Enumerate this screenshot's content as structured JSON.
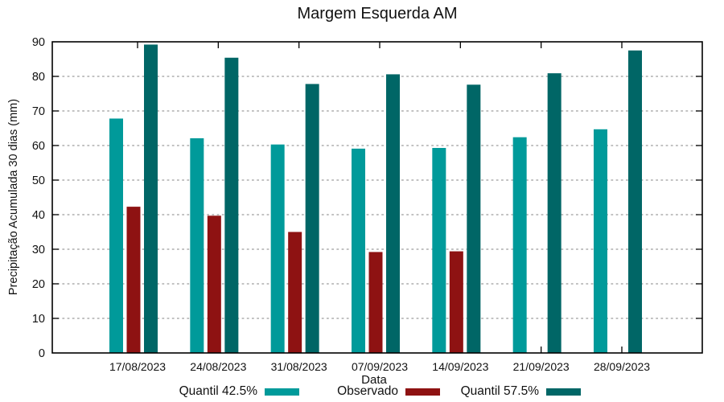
{
  "title": "Margem Esquerda AM",
  "chart_data": {
    "type": "bar",
    "title": "Margem Esquerda AM",
    "xlabel": "Data",
    "ylabel": "Precipitação Acumulada 30 dias (mm)",
    "ylim": [
      0,
      90
    ],
    "yticks": [
      0,
      10,
      20,
      30,
      40,
      50,
      60,
      70,
      80,
      90
    ],
    "grid": "horizontal-dashed",
    "legend_position": "bottom",
    "categories": [
      "17/08/2023",
      "24/08/2023",
      "31/08/2023",
      "07/09/2023",
      "14/09/2023",
      "21/09/2023",
      "28/09/2023"
    ],
    "series": [
      {
        "name": "Quantil 42.5%",
        "color": "#009a9a",
        "values": [
          67.8,
          62.1,
          60.3,
          59.1,
          59.3,
          62.4,
          64.7
        ]
      },
      {
        "name": "Observado",
        "color": "#8e1212",
        "values": [
          42.3,
          39.7,
          35.0,
          29.2,
          29.4,
          null,
          null
        ]
      },
      {
        "name": "Quantil 57.5%",
        "color": "#006666",
        "values": [
          89.2,
          85.4,
          77.8,
          80.6,
          77.6,
          80.9,
          87.5
        ]
      }
    ]
  }
}
